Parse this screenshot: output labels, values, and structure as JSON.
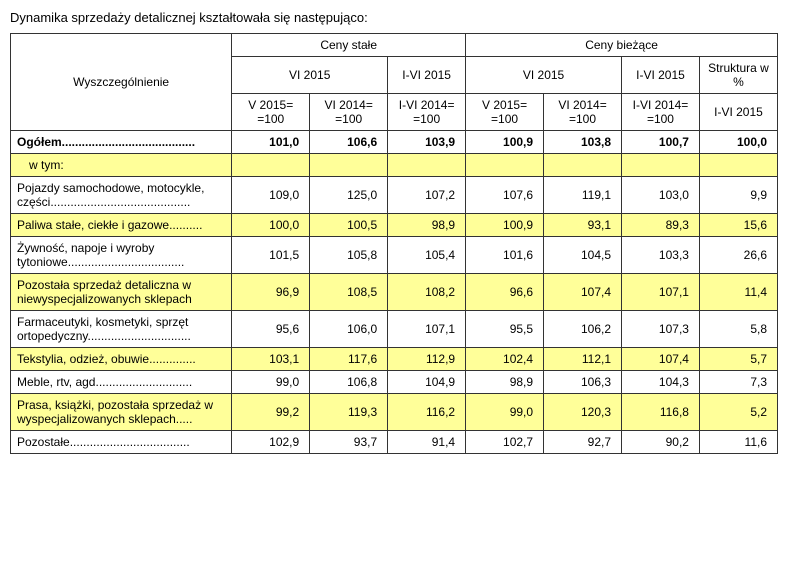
{
  "title": "Dynamika sprzedaży detalicznej kształtowała się następująco:",
  "headers": {
    "row_label": "Wyszczególnienie",
    "g1": "Ceny stałe",
    "g2": "Ceny bieżące",
    "sub_vi2015": "VI 2015",
    "sub_ivi2015": "I-VI 2015",
    "sub_struct": "Struktura w %",
    "c_v2015": "V 2015= =100",
    "c_vi2014": "VI 2014= =100",
    "c_ivi2014": "I-VI 2014= =100",
    "c_ivi2015": "I-VI 2015"
  },
  "rows": [
    {
      "label": "Ogółem........................................",
      "vals": [
        "101,0",
        "106,6",
        "103,9",
        "100,9",
        "103,8",
        "100,7",
        "100,0"
      ],
      "bold": true,
      "stripe": false
    },
    {
      "label": "w tym:",
      "vals": [
        "",
        "",
        "",
        "",
        "",
        "",
        ""
      ],
      "bold": false,
      "stripe": true,
      "indent": true
    },
    {
      "label": "Pojazdy samochodowe, motocykle, części..........................................",
      "vals": [
        "109,0",
        "125,0",
        "107,2",
        "107,6",
        "119,1",
        "103,0",
        "9,9"
      ],
      "bold": false,
      "stripe": false
    },
    {
      "label": "Paliwa stałe, ciekłe i gazowe..........",
      "vals": [
        "100,0",
        "100,5",
        "98,9",
        "100,9",
        "93,1",
        "89,3",
        "15,6"
      ],
      "bold": false,
      "stripe": true
    },
    {
      "label": "Żywność, napoje i wyroby tytoniowe...................................",
      "vals": [
        "101,5",
        "105,8",
        "105,4",
        "101,6",
        "104,5",
        "103,3",
        "26,6"
      ],
      "bold": false,
      "stripe": false
    },
    {
      "label": "Pozostała sprzedaż detaliczna w niewyspecjalizowanych sklepach",
      "vals": [
        "96,9",
        "108,5",
        "108,2",
        "96,6",
        "107,4",
        "107,1",
        "11,4"
      ],
      "bold": false,
      "stripe": true
    },
    {
      "label": "Farmaceutyki, kosmetyki, sprzęt ortopedyczny...............................",
      "vals": [
        "95,6",
        "106,0",
        "107,1",
        "95,5",
        "106,2",
        "107,3",
        "5,8"
      ],
      "bold": false,
      "stripe": false
    },
    {
      "label": "Tekstylia, odzież, obuwie..............",
      "vals": [
        "103,1",
        "117,6",
        "112,9",
        "102,4",
        "112,1",
        "107,4",
        "5,7"
      ],
      "bold": false,
      "stripe": true
    },
    {
      "label": "Meble, rtv, agd.............................",
      "vals": [
        "99,0",
        "106,8",
        "104,9",
        "98,9",
        "106,3",
        "104,3",
        "7,3"
      ],
      "bold": false,
      "stripe": false
    },
    {
      "label": "Prasa, książki, pozostała sprzedaż w wyspecjalizowanych sklepach.....",
      "vals": [
        "99,2",
        "119,3",
        "116,2",
        "99,0",
        "120,3",
        "116,8",
        "5,2"
      ],
      "bold": false,
      "stripe": true
    },
    {
      "label": "Pozostałe....................................",
      "vals": [
        "102,9",
        "93,7",
        "91,4",
        "102,7",
        "92,7",
        "90,2",
        "11,6"
      ],
      "bold": false,
      "stripe": false
    }
  ]
}
